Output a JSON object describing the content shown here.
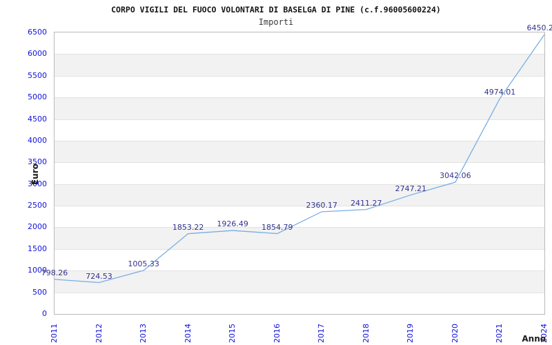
{
  "chart_data": {
    "type": "line",
    "title": "CORPO VIGILI DEL FUOCO VOLONTARI DI BASELGA DI PINE (c.f.96005600224)",
    "subtitle": "Importi",
    "xlabel": "Anno",
    "ylabel": "Euro",
    "categories": [
      "2011",
      "2012",
      "2013",
      "2014",
      "2015",
      "2016",
      "2017",
      "2018",
      "2019",
      "2020",
      "2021",
      "2024"
    ],
    "values": [
      798.26,
      724.53,
      1005.33,
      1853.22,
      1926.49,
      1854.79,
      2360.17,
      2411.27,
      2747.21,
      3042.06,
      4974.01,
      6450.2
    ],
    "point_labels": [
      "798.26",
      "724.53",
      "1005.33",
      "1853.22",
      "1926.49",
      "1854.79",
      "2360.17",
      "2411.27",
      "2747.21",
      "3042.06",
      "4974.01",
      "6450.2"
    ],
    "ylim": [
      0,
      6500
    ],
    "ytick_step": 500,
    "grid": "horizontal-bands",
    "legend": "none",
    "colors": {
      "line": "#79ade3",
      "point_label": "#32328c",
      "tick_label": "#1010d8",
      "band_gray": "#f2f2f2",
      "band_white": "#ffffff",
      "gridline": "#e2e2e2",
      "plot_border": "#b9b9b9",
      "title": "#141414",
      "subtitle": "#3c3c3c",
      "axis_name": "#1c1c1c"
    }
  }
}
